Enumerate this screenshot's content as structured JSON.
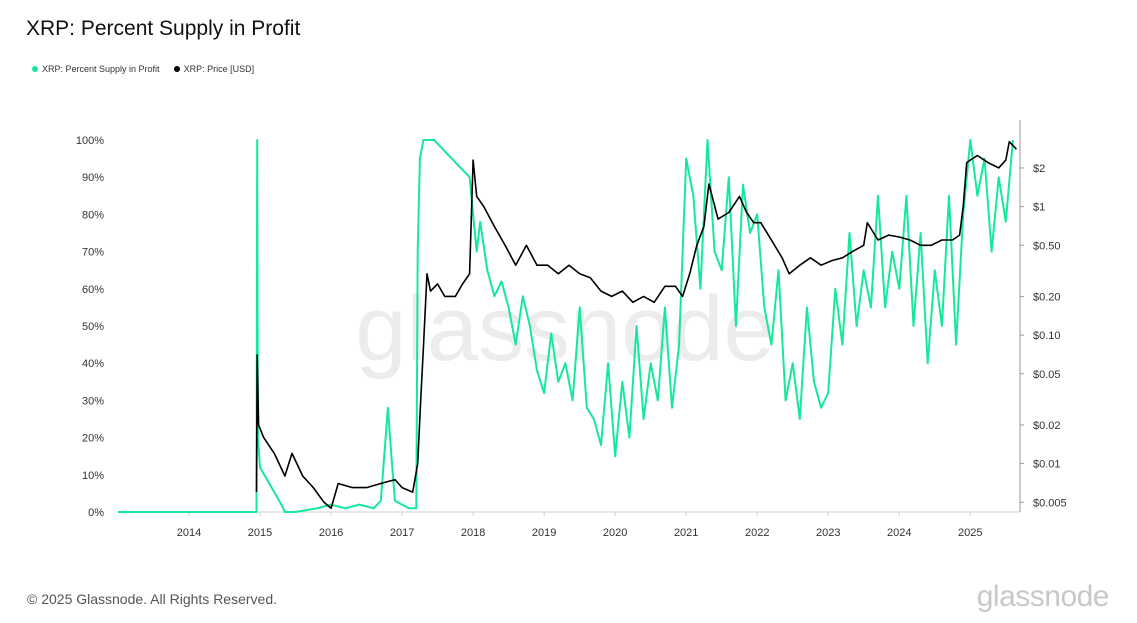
{
  "chart_data": {
    "type": "line",
    "title": "XRP: Percent Supply in Profit",
    "legend_placement": "top-left",
    "grid": false,
    "x_ticks": [
      "2014",
      "2015",
      "2016",
      "2017",
      "2018",
      "2019",
      "2020",
      "2021",
      "2022",
      "2023",
      "2024",
      "2025"
    ],
    "y_left_ticks": [
      "0%",
      "10%",
      "20%",
      "30%",
      "40%",
      "50%",
      "60%",
      "70%",
      "80%",
      "90%",
      "100%"
    ],
    "y_right_ticks": [
      "$0.005",
      "$0.01",
      "$0.02",
      "$0.05",
      "$0.10",
      "$0.20",
      "$0.50",
      "$1",
      "$2"
    ],
    "y_left_range": [
      0,
      100
    ],
    "y_right_range": [
      0.0042,
      3.3
    ],
    "y_right_scale": "log",
    "x_range": [
      2013.0,
      2025.7
    ],
    "series": [
      {
        "name": "XRP: Percent Supply in Profit",
        "color": "#16e89a",
        "axis": "left",
        "x": [
          2013.0,
          2014.95,
          2014.96,
          2014.97,
          2015.0,
          2015.3,
          2015.35,
          2015.5,
          2015.8,
          2016.0,
          2016.2,
          2016.4,
          2016.6,
          2016.7,
          2016.8,
          2016.85,
          2016.9,
          2017.0,
          2017.1,
          2017.2,
          2017.22,
          2017.25,
          2017.3,
          2017.45,
          2017.55,
          2017.7,
          2017.85,
          2017.95,
          2018.0,
          2018.05,
          2018.1,
          2018.2,
          2018.3,
          2018.4,
          2018.5,
          2018.6,
          2018.7,
          2018.8,
          2018.9,
          2019.0,
          2019.1,
          2019.2,
          2019.3,
          2019.4,
          2019.5,
          2019.6,
          2019.7,
          2019.8,
          2019.9,
          2020.0,
          2020.1,
          2020.2,
          2020.3,
          2020.4,
          2020.5,
          2020.6,
          2020.7,
          2020.8,
          2020.9,
          2021.0,
          2021.1,
          2021.2,
          2021.3,
          2021.4,
          2021.5,
          2021.6,
          2021.7,
          2021.8,
          2021.9,
          2022.0,
          2022.1,
          2022.2,
          2022.3,
          2022.4,
          2022.5,
          2022.6,
          2022.7,
          2022.8,
          2022.9,
          2023.0,
          2023.1,
          2023.2,
          2023.3,
          2023.4,
          2023.5,
          2023.6,
          2023.7,
          2023.8,
          2023.9,
          2024.0,
          2024.1,
          2024.2,
          2024.3,
          2024.4,
          2024.5,
          2024.6,
          2024.7,
          2024.8,
          2024.9,
          2025.0,
          2025.1,
          2025.2,
          2025.3,
          2025.4,
          2025.5,
          2025.6
        ],
        "values": [
          0,
          0,
          100,
          20,
          12,
          2,
          0,
          0,
          1,
          2,
          1,
          2,
          1,
          3,
          28,
          15,
          3,
          2,
          1,
          1,
          70,
          95,
          100,
          100,
          98,
          95,
          92,
          90,
          80,
          70,
          78,
          65,
          58,
          62,
          55,
          45,
          58,
          50,
          38,
          32,
          48,
          35,
          40,
          30,
          55,
          28,
          25,
          18,
          40,
          15,
          35,
          20,
          50,
          25,
          40,
          30,
          55,
          28,
          45,
          95,
          85,
          60,
          100,
          70,
          65,
          90,
          50,
          88,
          75,
          80,
          55,
          45,
          65,
          30,
          40,
          25,
          55,
          35,
          28,
          32,
          60,
          45,
          75,
          50,
          65,
          55,
          85,
          55,
          70,
          60,
          85,
          50,
          75,
          40,
          65,
          50,
          85,
          45,
          80,
          100,
          85,
          95,
          70,
          90,
          78,
          100
        ]
      },
      {
        "name": "XRP: Price [USD]",
        "color": "#000000",
        "axis": "right",
        "x": [
          2014.95,
          2014.96,
          2014.98,
          2015.05,
          2015.2,
          2015.35,
          2015.45,
          2015.6,
          2015.75,
          2015.9,
          2016.0,
          2016.1,
          2016.3,
          2016.5,
          2016.7,
          2016.9,
          2017.0,
          2017.15,
          2017.22,
          2017.26,
          2017.3,
          2017.35,
          2017.4,
          2017.5,
          2017.6,
          2017.75,
          2017.85,
          2017.95,
          2018.0,
          2018.05,
          2018.15,
          2018.3,
          2018.45,
          2018.6,
          2018.75,
          2018.9,
          2019.05,
          2019.2,
          2019.35,
          2019.5,
          2019.65,
          2019.8,
          2019.95,
          2020.1,
          2020.25,
          2020.4,
          2020.55,
          2020.7,
          2020.85,
          2020.95,
          2021.05,
          2021.15,
          2021.25,
          2021.32,
          2021.45,
          2021.6,
          2021.75,
          2021.85,
          2021.95,
          2022.05,
          2022.2,
          2022.35,
          2022.45,
          2022.6,
          2022.75,
          2022.9,
          2023.05,
          2023.2,
          2023.35,
          2023.5,
          2023.55,
          2023.7,
          2023.85,
          2024.0,
          2024.15,
          2024.3,
          2024.45,
          2024.6,
          2024.75,
          2024.85,
          2024.9,
          2024.95,
          2025.0,
          2025.1,
          2025.25,
          2025.4,
          2025.5,
          2025.55,
          2025.65
        ],
        "values": [
          0.006,
          0.07,
          0.02,
          0.016,
          0.012,
          0.008,
          0.012,
          0.008,
          0.0065,
          0.005,
          0.0045,
          0.007,
          0.0065,
          0.0065,
          0.007,
          0.0075,
          0.0065,
          0.006,
          0.01,
          0.03,
          0.08,
          0.3,
          0.22,
          0.25,
          0.2,
          0.2,
          0.25,
          0.3,
          2.3,
          1.2,
          1.0,
          0.7,
          0.5,
          0.35,
          0.5,
          0.35,
          0.35,
          0.3,
          0.35,
          0.3,
          0.28,
          0.22,
          0.2,
          0.22,
          0.18,
          0.2,
          0.18,
          0.24,
          0.24,
          0.2,
          0.3,
          0.5,
          0.7,
          1.5,
          0.8,
          0.9,
          1.2,
          0.9,
          0.75,
          0.75,
          0.55,
          0.4,
          0.3,
          0.35,
          0.4,
          0.35,
          0.38,
          0.4,
          0.45,
          0.5,
          0.75,
          0.55,
          0.6,
          0.58,
          0.55,
          0.5,
          0.5,
          0.55,
          0.55,
          0.6,
          1.0,
          2.2,
          2.3,
          2.5,
          2.2,
          2.0,
          2.3,
          3.2,
          2.8
        ]
      }
    ]
  },
  "footer": {
    "copyright": "© 2025 Glassnode. All Rights Reserved.",
    "brand": "glassnode"
  },
  "watermark": "glassnode"
}
